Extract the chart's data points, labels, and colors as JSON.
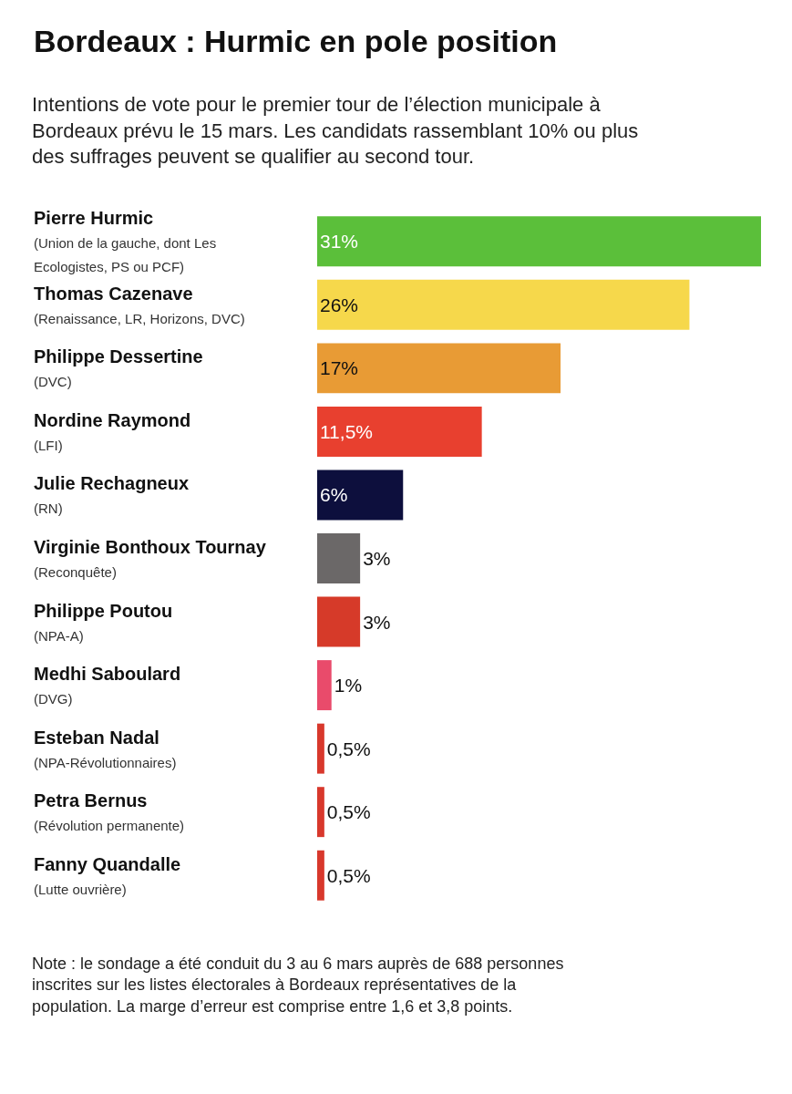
{
  "chart_data": {
    "type": "bar",
    "orientation": "horizontal",
    "title": "Bordeaux : Hurmic en pole position",
    "subtitle": "Intentions de vote pour le premier tour de l’élection municipale à Bordeaux prévu le 15 mars. Les candidats rassemblant 10% ou plus des suffrages peuvent se qualifier au second tour.",
    "categories": [
      "Pierre Hurmic\n(Union de la gauche, dont Les Ecologistes, PS ou PCF)",
      "Thomas Cazenave\n(Renaissance, LR, Horizons, DVC)",
      "Philippe Dessertine\n(DVC)",
      "Nordine Raymond\n(LFI)",
      "Julie Rechagneux\n(RN)",
      "Virginie Bonthoux Tournay\n(Reconquête)",
      "Philippe Poutou\n(NPA-A)",
      "Medhi Saboulard\n(DVG)",
      "Esteban Nadal\n(NPA-Révolutionnaires)",
      "Petra Bernus\n(Révolution permanente)",
      "Fanny Quandalle\n(Lutte ouvrière)"
    ],
    "values": [
      31,
      26,
      17,
      11.5,
      6,
      3,
      3,
      1,
      0.5,
      0.5,
      0.5
    ],
    "value_labels": [
      "31%",
      "26%",
      "17%",
      "11,5%",
      "6%",
      "3%",
      "3%",
      "1%",
      "0,5%",
      "0,5%",
      "0,5%"
    ],
    "colors": [
      "#5bbf3a",
      "#f6d84b",
      "#e89b35",
      "#e8402f",
      "#0d0f3d",
      "#6b6868",
      "#d63a29",
      "#e94b6b",
      "#d8382c",
      "#d8382c",
      "#d8382c"
    ],
    "legend": false,
    "annotations": [
      "Note : le sondage a été conduit du 3 au 6 mars auprès de 688 personnes inscrites sur les listes électorales à Bordeaux représentatives de la population. La marge d’erreur est comprise entre 1,6 et 3,8 points."
    ]
  }
}
